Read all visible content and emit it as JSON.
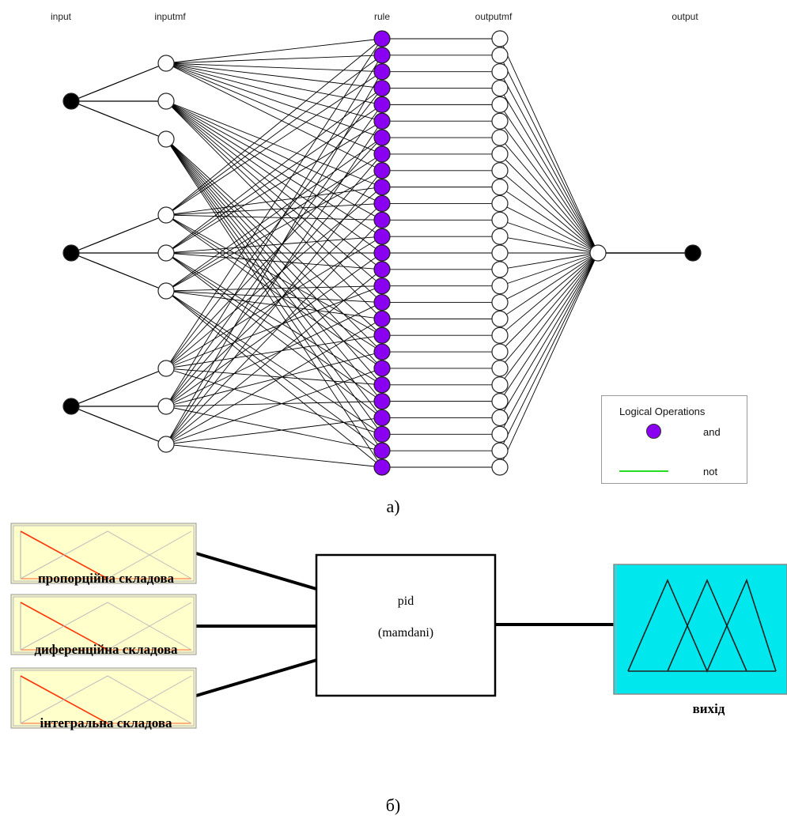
{
  "top_panel": {
    "column_labels": {
      "input": "input",
      "inputmf": "inputmf",
      "rule": "rule",
      "outputmf": "outputmf",
      "output": "output"
    },
    "input_count": 3,
    "inputmf_per_input": 3,
    "rule_count": 27,
    "outputmf_count": 27,
    "output_count": 1,
    "legend": {
      "title": "Logical Operations",
      "and_label": "and",
      "not_label": "not",
      "and_color": "#8a00f0",
      "not_color": "#22dd22"
    },
    "caption": "а)"
  },
  "bottom_panel": {
    "inputs": [
      {
        "label": "пропорційна складова"
      },
      {
        "label": "диференційна складова"
      },
      {
        "label": "інтегральна складова"
      }
    ],
    "system": {
      "name": "pid",
      "type": "(mamdani)"
    },
    "output": {
      "label": "вихід",
      "fill_color": "#00e8ee"
    },
    "mf_panel_color": "#ffffcc",
    "mf_line_color": "#ff3300",
    "caption": "б)"
  }
}
